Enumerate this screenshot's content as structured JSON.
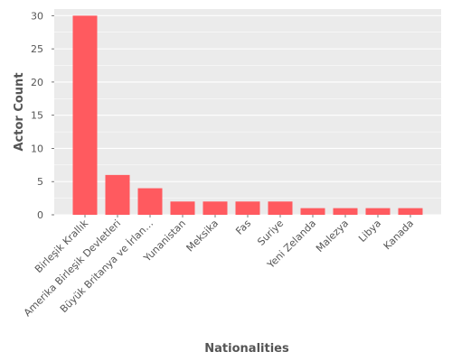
{
  "chart_data": {
    "type": "bar",
    "title": "",
    "xlabel": "Nationalities",
    "ylabel": "Actor Count",
    "categories": [
      "Birleşik Krallık",
      "Amerika Birleşik Devletleri",
      "Büyük Britanya ve İrlan…",
      "Yunanistan",
      "Meksika",
      "Fas",
      "Suriye",
      "Yeni Zelanda",
      "Malezya",
      "Libya",
      "Kanada"
    ],
    "values": [
      30,
      6,
      4,
      2,
      2,
      2,
      2,
      1,
      1,
      1,
      1
    ],
    "ylim": [
      0,
      31
    ],
    "yticks": [
      0,
      5,
      10,
      15,
      20,
      25,
      30
    ],
    "grid": true,
    "bar_color": "#ff5a5f",
    "background_color": "#ebebeb",
    "grid_color": "#ffffff"
  }
}
